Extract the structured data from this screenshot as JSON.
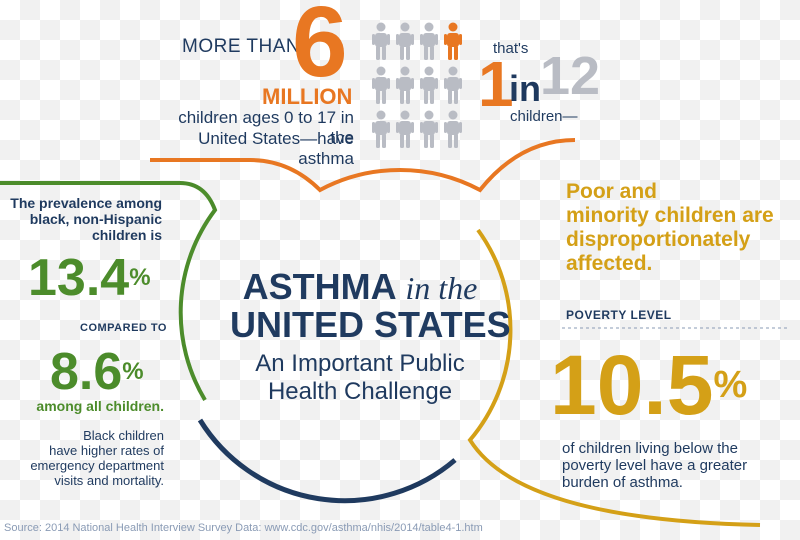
{
  "top": {
    "more_than": "MORE THAN",
    "big_number": "6",
    "million": "MILLION",
    "desc_line1": "children ages 0 to 17 in the",
    "desc_line2": "United States—have asthma",
    "thats": "that's",
    "ratio_one": "1",
    "ratio_in": "in",
    "ratio_twelve": "12",
    "children": "children—"
  },
  "center": {
    "asthma": "ASTHMA",
    "in_the": "in the",
    "united_states": "UNITED STATES",
    "sub_line1": "An Important Public",
    "sub_line2": "Health Challenge"
  },
  "left": {
    "line1": "The prevalence among",
    "line2": "black, non-Hispanic",
    "line3": "children is",
    "stat1": "13.4",
    "pct": "%",
    "compared": "COMPARED TO",
    "stat2": "8.6",
    "among": "among all children.",
    "note1": "Black children",
    "note2": "have higher rates of",
    "note3": "emergency department",
    "note4": "visits and mortality."
  },
  "right": {
    "head1": "Poor and",
    "head2": "minority children are",
    "head3": "disproportionately",
    "head4": "affected.",
    "poverty_label": "POVERTY LEVEL",
    "stat": "10.5",
    "pct": "%",
    "desc1": "of children living below the",
    "desc2": "poverty level have a greater",
    "desc3": "burden of asthma."
  },
  "source": "Source: 2014 National Health Interview Survey Data: www.cdc.gov/asthma/nhis/2014/table4-1.htm",
  "people": {
    "total": 12,
    "highlighted": 1,
    "colors": {
      "default": "#b9bcc4",
      "highlight": "#e87722"
    }
  },
  "colors": {
    "navy": "#1f3a5f",
    "orange": "#e87722",
    "green": "#4c8c2b",
    "gold": "#d4a017",
    "gray": "#b9bcc4"
  }
}
